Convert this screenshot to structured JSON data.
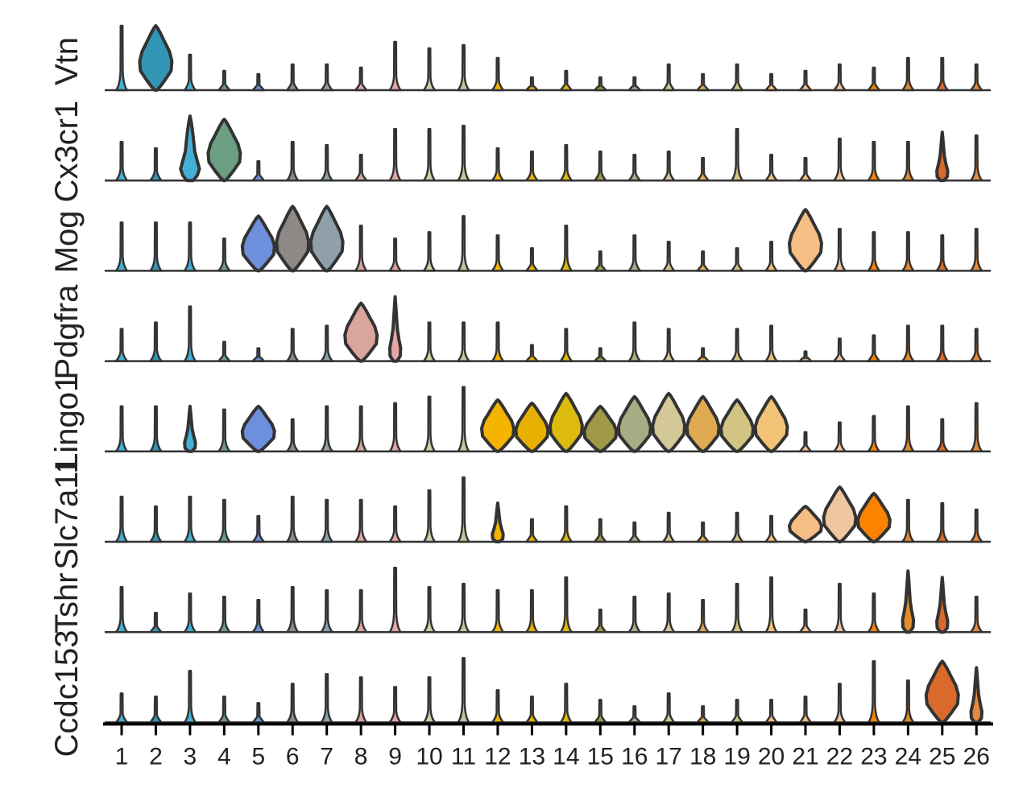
{
  "chart_data": {
    "type": "violin",
    "title": "",
    "xlabel": "",
    "ylabel": "",
    "categories": [
      "1",
      "2",
      "3",
      "4",
      "5",
      "6",
      "7",
      "8",
      "9",
      "10",
      "11",
      "12",
      "13",
      "14",
      "15",
      "16",
      "17",
      "18",
      "19",
      "20",
      "21",
      "22",
      "23",
      "24",
      "25",
      "26"
    ],
    "colors": [
      "#43b2d6",
      "#3296b4",
      "#45b0d4",
      "#6b9e82",
      "#6e8fdc",
      "#8e8886",
      "#8fa0aa",
      "#daa69c",
      "#e6a6a6",
      "#cfcfa8",
      "#c6c69e",
      "#f4b400",
      "#e6b000",
      "#dcbb0c",
      "#a09a46",
      "#a8ac86",
      "#d4c898",
      "#e0aa52",
      "#d2c482",
      "#f2c276",
      "#f4be84",
      "#f0c69e",
      "#fb8300",
      "#e28c2c",
      "#da6a2c",
      "#e48a3a"
    ],
    "genes": [
      {
        "name": "Vtn",
        "max": [
          1.0,
          1.0,
          0.55,
          0.3,
          0.25,
          0.4,
          0.4,
          0.35,
          0.75,
          0.65,
          0.7,
          0.5,
          0.2,
          0.3,
          0.2,
          0.2,
          0.4,
          0.25,
          0.4,
          0.25,
          0.3,
          0.4,
          0.35,
          0.5,
          0.5,
          0.4
        ]
      },
      {
        "name": "Cx3cr1",
        "max": [
          0.6,
          0.5,
          1.0,
          0.95,
          0.3,
          0.6,
          0.55,
          0.4,
          0.8,
          0.8,
          0.85,
          0.5,
          0.45,
          0.55,
          0.45,
          0.4,
          0.45,
          0.35,
          0.8,
          0.4,
          0.35,
          0.65,
          0.6,
          0.6,
          0.75,
          0.7
        ]
      },
      {
        "name": "Mog",
        "max": [
          0.75,
          0.75,
          0.75,
          0.5,
          0.85,
          1.0,
          1.0,
          0.7,
          0.5,
          0.6,
          0.85,
          0.55,
          0.35,
          0.7,
          0.3,
          0.55,
          0.45,
          0.3,
          0.35,
          0.45,
          0.95,
          0.65,
          0.6,
          0.6,
          0.55,
          0.65
        ]
      },
      {
        "name": "Pdgfra",
        "max": [
          0.5,
          0.6,
          0.85,
          0.3,
          0.2,
          0.5,
          0.55,
          0.9,
          1.0,
          0.6,
          0.6,
          0.6,
          0.25,
          0.5,
          0.2,
          0.6,
          0.5,
          0.2,
          0.5,
          0.55,
          0.15,
          0.35,
          0.4,
          0.55,
          0.55,
          0.5
        ]
      },
      {
        "name": "Lingo1",
        "max": [
          0.7,
          0.7,
          0.7,
          0.65,
          0.7,
          0.5,
          0.7,
          0.7,
          0.75,
          0.85,
          1.0,
          0.8,
          0.75,
          0.9,
          0.7,
          0.85,
          0.9,
          0.85,
          0.8,
          0.85,
          0.3,
          0.45,
          0.55,
          0.7,
          0.5,
          0.75
        ]
      },
      {
        "name": "Slc7a11",
        "max": [
          0.7,
          0.55,
          0.7,
          0.65,
          0.4,
          0.7,
          0.65,
          0.65,
          0.55,
          0.8,
          1.0,
          0.6,
          0.35,
          0.55,
          0.35,
          0.3,
          0.45,
          0.3,
          0.45,
          0.4,
          0.55,
          0.85,
          0.75,
          0.65,
          0.6,
          0.5
        ]
      },
      {
        "name": "Tshr",
        "max": [
          0.7,
          0.3,
          0.6,
          0.55,
          0.5,
          0.7,
          0.65,
          0.65,
          1.0,
          0.7,
          0.75,
          0.65,
          0.65,
          0.85,
          0.35,
          0.55,
          0.6,
          0.5,
          0.75,
          0.85,
          0.35,
          0.75,
          0.6,
          0.95,
          0.85,
          0.55
        ]
      },
      {
        "name": "Ccdc153",
        "max": [
          0.45,
          0.4,
          0.8,
          0.4,
          0.3,
          0.6,
          0.75,
          0.7,
          0.55,
          0.7,
          1.0,
          0.5,
          0.4,
          0.6,
          0.35,
          0.25,
          0.45,
          0.25,
          0.35,
          0.35,
          0.4,
          0.6,
          0.95,
          0.65,
          0.95,
          0.85
        ]
      }
    ],
    "shapes": [
      [
        "spike",
        "wide",
        "spike",
        "spike",
        "spike",
        "spike",
        "spike",
        "spike",
        "spike",
        "spike",
        "spike",
        "spike",
        "spike",
        "spike",
        "spike",
        "spike",
        "spike",
        "spike",
        "spike",
        "spike",
        "spike",
        "spike",
        "spike",
        "spike",
        "spike",
        "spike"
      ],
      [
        "spike",
        "spike",
        "tall",
        "wide",
        "spike",
        "spike",
        "spike",
        "spike",
        "spike",
        "spike",
        "spike",
        "spike",
        "spike",
        "spike",
        "spike",
        "spike",
        "spike",
        "spike",
        "spike",
        "spike",
        "spike",
        "spike",
        "spike",
        "spike",
        "narrow",
        "spike"
      ],
      [
        "spike",
        "spike",
        "spike",
        "spike",
        "wide",
        "wide",
        "wide",
        "spike",
        "spike",
        "spike",
        "spike",
        "spike",
        "spike",
        "spike",
        "spike",
        "spike",
        "spike",
        "spike",
        "spike",
        "spike",
        "wide",
        "spike",
        "spike",
        "spike",
        "spike",
        "spike"
      ],
      [
        "spike",
        "spike",
        "spike",
        "spike",
        "spike",
        "spike",
        "spike",
        "wide",
        "narrow",
        "spike",
        "spike",
        "spike",
        "spike",
        "spike",
        "spike",
        "spike",
        "spike",
        "spike",
        "spike",
        "spike",
        "spike",
        "spike",
        "spike",
        "spike",
        "spike",
        "spike"
      ],
      [
        "spike",
        "spike",
        "narrow",
        "spike",
        "wide",
        "spike",
        "spike",
        "spike",
        "spike",
        "spike",
        "spike",
        "wide",
        "wide",
        "wide",
        "wide",
        "wide",
        "wide",
        "wide",
        "wide",
        "wide",
        "spike",
        "spike",
        "spike",
        "spike",
        "spike",
        "spike"
      ],
      [
        "spike",
        "spike",
        "spike",
        "spike",
        "spike",
        "spike",
        "spike",
        "spike",
        "spike",
        "spike",
        "spike",
        "narrow",
        "spike",
        "spike",
        "spike",
        "spike",
        "spike",
        "spike",
        "spike",
        "spike",
        "wide",
        "wide",
        "wide",
        "spike",
        "spike",
        "spike"
      ],
      [
        "spike",
        "spike",
        "spike",
        "spike",
        "spike",
        "spike",
        "spike",
        "spike",
        "spike",
        "spike",
        "spike",
        "spike",
        "spike",
        "spike",
        "spike",
        "spike",
        "spike",
        "spike",
        "spike",
        "spike",
        "spike",
        "spike",
        "spike",
        "narrow",
        "narrow",
        "spike"
      ],
      [
        "spike",
        "spike",
        "spike",
        "spike",
        "spike",
        "spike",
        "spike",
        "spike",
        "spike",
        "spike",
        "spike",
        "spike",
        "spike",
        "spike",
        "spike",
        "spike",
        "spike",
        "spike",
        "spike",
        "spike",
        "spike",
        "spike",
        "spike",
        "spike",
        "wide",
        "narrow"
      ]
    ],
    "grid": false,
    "legend": "none"
  }
}
